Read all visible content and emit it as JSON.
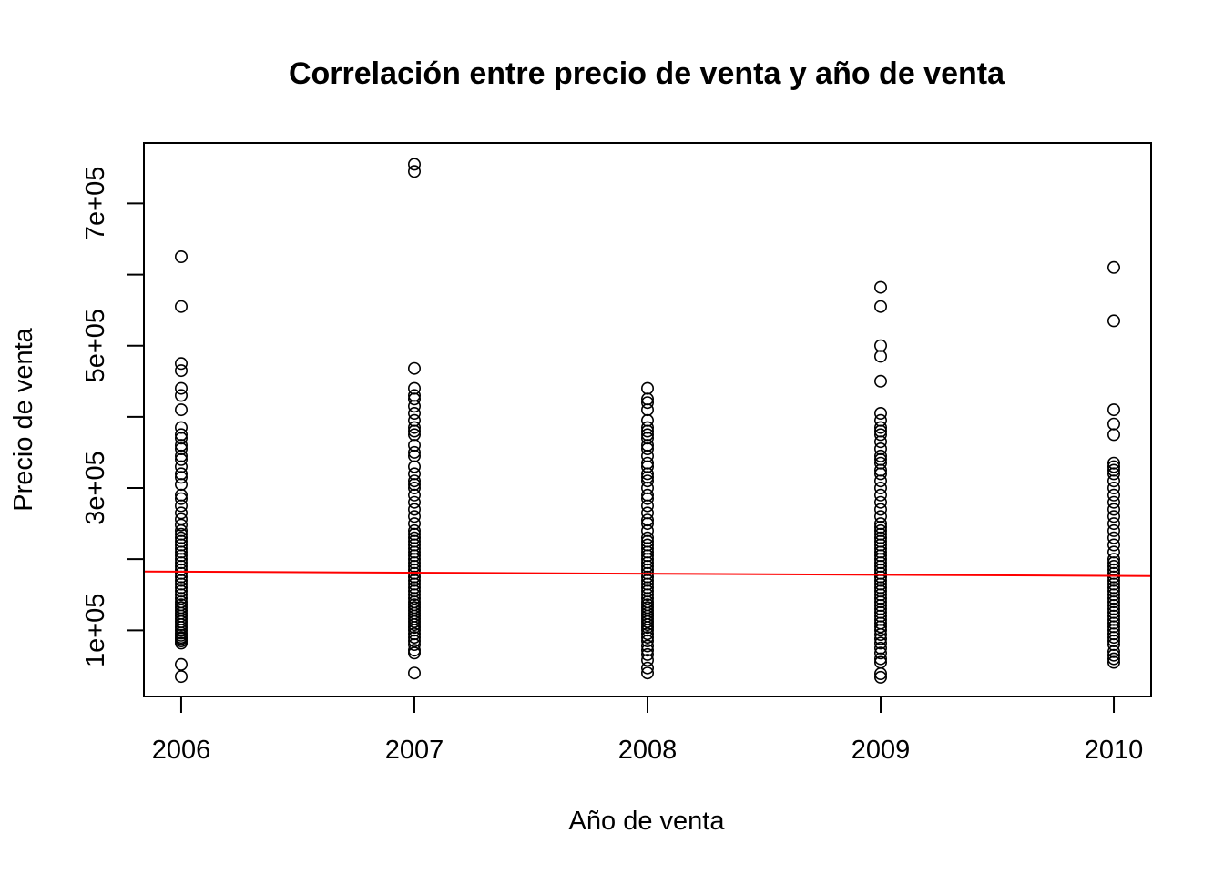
{
  "chart_data": {
    "type": "scatter",
    "title": "Correlación entre precio de venta y año de venta",
    "xlabel": "Año de venta",
    "ylabel": "Precio de venta",
    "xlim": [
      2005.84,
      2010.16
    ],
    "ylim": [
      7000,
      785000
    ],
    "x_ticks": [
      2006,
      2007,
      2008,
      2009,
      2010
    ],
    "x_tick_labels": [
      "2006",
      "2007",
      "2008",
      "2009",
      "2010"
    ],
    "y_ticks": [
      100000,
      200000,
      300000,
      400000,
      500000,
      600000,
      700000
    ],
    "y_tick_labels": [
      "1e+05",
      "",
      "3e+05",
      "",
      "5e+05",
      "",
      "7e+05"
    ],
    "grid": false,
    "legend": "none",
    "colors": {
      "points": "#000000",
      "regression_line": "#ff0000",
      "frame": "#000000"
    },
    "series": [
      {
        "x": 2006,
        "values": [
          35000,
          52000,
          82000,
          85000,
          88000,
          90000,
          93000,
          96000,
          100000,
          104000,
          108000,
          112000,
          116000,
          120000,
          124000,
          128000,
          132000,
          136000,
          140000,
          145000,
          150000,
          155000,
          160000,
          165000,
          170000,
          175000,
          180000,
          185000,
          190000,
          195000,
          200000,
          205000,
          210000,
          215000,
          220000,
          225000,
          230000,
          235000,
          240000,
          248000,
          256000,
          265000,
          275000,
          285000,
          290000,
          305000,
          315000,
          320000,
          330000,
          340000,
          345000,
          355000,
          360000,
          370000,
          375000,
          385000,
          410000,
          430000,
          440000,
          465000,
          475000,
          555000,
          625000
        ]
      },
      {
        "x": 2007,
        "values": [
          40000,
          68000,
          72000,
          80000,
          85000,
          90000,
          95000,
          100000,
          104000,
          108000,
          112000,
          116000,
          120000,
          124000,
          128000,
          132000,
          136000,
          140000,
          145000,
          150000,
          155000,
          160000,
          165000,
          170000,
          175000,
          180000,
          185000,
          190000,
          195000,
          200000,
          205000,
          210000,
          215000,
          220000,
          225000,
          230000,
          235000,
          240000,
          250000,
          260000,
          270000,
          280000,
          290000,
          300000,
          305000,
          310000,
          320000,
          330000,
          345000,
          350000,
          360000,
          375000,
          380000,
          385000,
          395000,
          405000,
          415000,
          425000,
          430000,
          440000,
          468000,
          745000,
          755000
        ]
      },
      {
        "x": 2008,
        "values": [
          40000,
          47000,
          58000,
          66000,
          72000,
          78000,
          85000,
          90000,
          95000,
          100000,
          104000,
          108000,
          112000,
          116000,
          120000,
          124000,
          128000,
          132000,
          136000,
          140000,
          145000,
          150000,
          155000,
          160000,
          165000,
          170000,
          175000,
          180000,
          185000,
          190000,
          195000,
          200000,
          205000,
          210000,
          215000,
          220000,
          225000,
          230000,
          240000,
          250000,
          255000,
          265000,
          275000,
          285000,
          290000,
          300000,
          310000,
          315000,
          320000,
          330000,
          335000,
          345000,
          355000,
          360000,
          370000,
          375000,
          380000,
          385000,
          395000,
          410000,
          420000,
          425000,
          440000
        ]
      },
      {
        "x": 2009,
        "values": [
          34000,
          39000,
          55000,
          60000,
          68000,
          75000,
          82000,
          88000,
          94000,
          100000,
          105000,
          110000,
          115000,
          120000,
          125000,
          130000,
          135000,
          140000,
          145000,
          150000,
          155000,
          160000,
          165000,
          170000,
          175000,
          180000,
          185000,
          190000,
          195000,
          200000,
          205000,
          210000,
          215000,
          220000,
          225000,
          230000,
          235000,
          240000,
          245000,
          250000,
          260000,
          270000,
          280000,
          290000,
          300000,
          310000,
          320000,
          325000,
          335000,
          340000,
          345000,
          355000,
          365000,
          375000,
          380000,
          385000,
          395000,
          405000,
          450000,
          485000,
          500000,
          555000,
          582000
        ]
      },
      {
        "x": 2010,
        "values": [
          55000,
          60000,
          65000,
          70000,
          80000,
          85000,
          90000,
          95000,
          100000,
          105000,
          110000,
          115000,
          120000,
          125000,
          130000,
          135000,
          140000,
          145000,
          150000,
          155000,
          160000,
          165000,
          170000,
          175000,
          180000,
          185000,
          190000,
          195000,
          200000,
          210000,
          220000,
          230000,
          240000,
          250000,
          260000,
          270000,
          280000,
          290000,
          300000,
          310000,
          320000,
          325000,
          330000,
          335000,
          375000,
          390000,
          410000,
          535000,
          610000
        ]
      }
    ],
    "regression_line": {
      "x": [
        2005.84,
        2010.16
      ],
      "y": [
        182700,
        176300
      ]
    }
  }
}
